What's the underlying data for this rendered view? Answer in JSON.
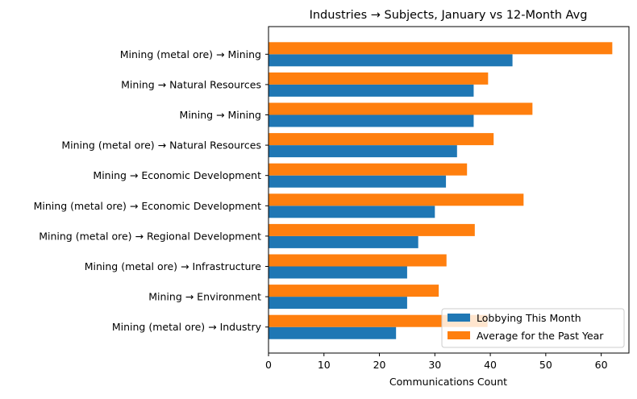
{
  "chart_data": {
    "type": "bar",
    "orientation": "horizontal",
    "title": "Industries → Subjects, January vs 12-Month Avg",
    "xlabel": "Communications Count",
    "ylabel": "",
    "xlim": [
      0,
      65
    ],
    "xticks": [
      0,
      10,
      20,
      30,
      40,
      50,
      60
    ],
    "grid": false,
    "legend_position": "lower-right",
    "categories": [
      "Mining (metal ore) → Mining",
      "Mining → Natural Resources",
      "Mining → Mining",
      "Mining (metal ore) → Natural Resources",
      "Mining → Economic Development",
      "Mining (metal ore) → Economic Development",
      "Mining (metal ore) → Regional Development",
      "Mining (metal ore) → Infrastructure",
      "Mining → Environment",
      "Mining (metal ore) → Industry"
    ],
    "series": [
      {
        "name": "Lobbying This Month",
        "color": "#1f77b4",
        "values": [
          44,
          37,
          37,
          34,
          32,
          30,
          27,
          25,
          25,
          23
        ]
      },
      {
        "name": "Average for the Past Year",
        "color": "#ff7f0e",
        "values": [
          62,
          39.6,
          47.6,
          40.6,
          35.8,
          46,
          37.2,
          32.1,
          30.7,
          39.5
        ]
      }
    ]
  }
}
